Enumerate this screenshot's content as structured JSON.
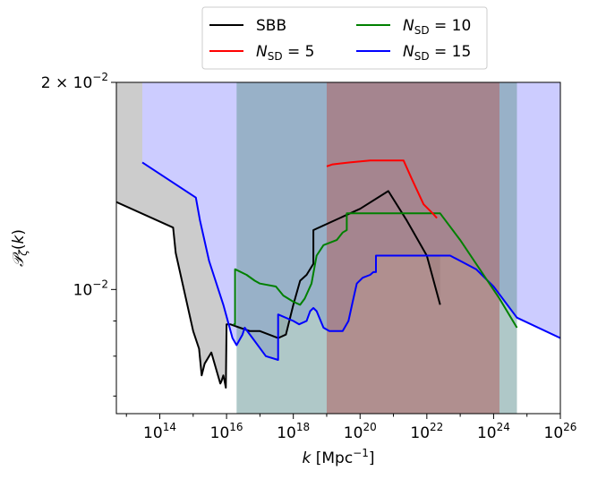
{
  "chart_data": {
    "type": "line",
    "xlabel": "k [Mpc⁻¹]",
    "ylabel": "𝒫ζ(k)",
    "x_scale": "log",
    "y_scale": "log",
    "xlim": [
      5000000000000.0,
      1e+26
    ],
    "ylim": [
      0.0066,
      0.02
    ],
    "x_tick_values": [
      100000000000000.0,
      1e+16,
      1e+18,
      1e+20,
      1e+22,
      1e+24,
      1e+26
    ],
    "x_tick_labels": [
      {
        "base": "10",
        "exp": "14"
      },
      {
        "base": "10",
        "exp": "16"
      },
      {
        "base": "10",
        "exp": "18"
      },
      {
        "base": "10",
        "exp": "20"
      },
      {
        "base": "10",
        "exp": "22"
      },
      {
        "base": "10",
        "exp": "24"
      },
      {
        "base": "10",
        "exp": "26"
      }
    ],
    "y_tick_labels": [
      {
        "value": 0.01,
        "base": "10",
        "exp": "−2"
      },
      {
        "value": 0.02,
        "prefix": "2 × ",
        "base": "10",
        "exp": "−2"
      }
    ],
    "y_minor_ticks": [
      0.007,
      0.008,
      0.009
    ],
    "grid": false,
    "legend_position": "top-center, above plot",
    "series": [
      {
        "name": "SBB",
        "color": "#000000",
        "fill_color": "#cccccc",
        "fill_upper": [
          [
            5000000000000.0,
            0.02
          ],
          [
            2.5e+22,
            0.02
          ],
          [
            2.5e+22,
            0.0095
          ]
        ],
        "line": [
          [
            5000000000000.0,
            0.0134
          ],
          [
            250000000000000.0,
            0.0123
          ],
          [
            300000000000000.0,
            0.0113
          ],
          [
            1000000000000000.0,
            0.0087
          ],
          [
            1500000000000000.0,
            0.0082
          ],
          [
            1800000000000000.0,
            0.0075
          ],
          [
            2200000000000000.0,
            0.0078
          ],
          [
            3500000000000000.0,
            0.0081
          ],
          [
            6500000000000000.0,
            0.0073
          ],
          [
            7000000000000000.0,
            0.00735
          ],
          [
            8000000000000000.0,
            0.0075
          ],
          [
            8500000000000000.0,
            0.0074
          ],
          [
            9500000000000000.0,
            0.0072
          ],
          [
            1e+16,
            0.0089
          ],
          [
            1.3e+16,
            0.0089
          ],
          [
            2.5e+16,
            0.0088
          ],
          [
            5e+16,
            0.0087
          ],
          [
            1e+17,
            0.0087
          ],
          [
            3.5e+17,
            0.0085
          ],
          [
            6e+17,
            0.0086
          ],
          [
            1e+18,
            0.0095
          ],
          [
            1.6e+18,
            0.0103
          ],
          [
            2.5e+18,
            0.0105
          ],
          [
            4e+18,
            0.0109
          ],
          [
            4e+18,
            0.0122
          ],
          [
            1e+20,
            0.0131
          ],
          [
            7e+20,
            0.0139
          ],
          [
            2.5e+21,
            0.0126
          ],
          [
            1e+22,
            0.0112
          ],
          [
            2.5e+22,
            0.0095
          ]
        ]
      },
      {
        "name": "NSD = 5",
        "label_base": "N",
        "label_sub": "SD",
        "label_rest": " = 5",
        "color": "#ff0000",
        "fill_color": "#b06060",
        "fill_x": [
          1e+19,
          1.5e+24
        ],
        "line": [
          [
            1e+19,
            0.0151
          ],
          [
            1.5e+19,
            0.0152
          ],
          [
            5e+19,
            0.0153
          ],
          [
            2e+20,
            0.0154
          ],
          [
            1e+21,
            0.0154
          ],
          [
            2e+21,
            0.0154
          ],
          [
            3.5e+21,
            0.0145
          ],
          [
            8e+21,
            0.0133
          ],
          [
            1.5e+22,
            0.0129
          ],
          [
            2e+22,
            0.0127
          ]
        ]
      },
      {
        "name": "NSD = 10",
        "label_base": "N",
        "label_sub": "SD",
        "label_rest": " = 10",
        "color": "#008000",
        "fill_color": "#6d9a9a",
        "fill_x": [
          2e+16,
          5e+24
        ],
        "line": [
          [
            1.6e+16,
            0.0089
          ],
          [
            1.8e+16,
            0.0089
          ],
          [
            1.8e+16,
            0.0107
          ],
          [
            4e+16,
            0.0105
          ],
          [
            7e+16,
            0.0103
          ],
          [
            1e+17,
            0.0102
          ],
          [
            3e+17,
            0.0101
          ],
          [
            5e+17,
            0.0098
          ],
          [
            1e+18,
            0.0096
          ],
          [
            1.6e+18,
            0.0095
          ],
          [
            2.2e+18,
            0.0097
          ],
          [
            3.5e+18,
            0.0102
          ],
          [
            5e+18,
            0.0112
          ],
          [
            8e+18,
            0.0116
          ],
          [
            2e+19,
            0.0118
          ],
          [
            3e+19,
            0.0121
          ],
          [
            4e+19,
            0.0122
          ],
          [
            4e+19,
            0.0129
          ],
          [
            1e+21,
            0.0129
          ],
          [
            1e+22,
            0.0129
          ],
          [
            2.5e+22,
            0.0129
          ],
          [
            1e+23,
            0.0118
          ],
          [
            5e+23,
            0.0105
          ],
          [
            1.5e+24,
            0.0097
          ],
          [
            5e+24,
            0.0088
          ]
        ]
      },
      {
        "name": "NSD = 15",
        "label_base": "N",
        "label_sub": "SD",
        "label_rest": " = 15",
        "color": "#0000ff",
        "fill_color": "#ccccff",
        "fill_upper": [
          [
            30000000000000.0,
            0.02
          ],
          [
            1e+26,
            0.02
          ],
          [
            1e+26,
            0.0085
          ]
        ],
        "line": [
          [
            30000000000000.0,
            0.0153
          ],
          [
            1200000000000000.0,
            0.0136
          ],
          [
            1600000000000000.0,
            0.0126
          ],
          [
            3000000000000000.0,
            0.011
          ],
          [
            8000000000000000.0,
            0.0095
          ],
          [
            1.5e+16,
            0.0085
          ],
          [
            2e+16,
            0.0083
          ],
          [
            3e+16,
            0.0086
          ],
          [
            3.5e+16,
            0.0088
          ],
          [
            6e+16,
            0.0085
          ],
          [
            1.5e+17,
            0.008
          ],
          [
            3.5e+17,
            0.0079
          ],
          [
            3.5e+17,
            0.0092
          ],
          [
            1e+18,
            0.009
          ],
          [
            1.5e+18,
            0.0089
          ],
          [
            2.5e+18,
            0.009
          ],
          [
            3.2e+18,
            0.0093
          ],
          [
            4e+18,
            0.0094
          ],
          [
            5e+18,
            0.0093
          ],
          [
            8e+18,
            0.0088
          ],
          [
            1.2e+19,
            0.0087
          ],
          [
            3e+19,
            0.0087
          ],
          [
            4.5e+19,
            0.009
          ],
          [
            6e+19,
            0.0096
          ],
          [
            8e+19,
            0.0102
          ],
          [
            1.2e+20,
            0.0104
          ],
          [
            2e+20,
            0.0105
          ],
          [
            2.5e+20,
            0.0106
          ],
          [
            3e+20,
            0.0106
          ],
          [
            3e+20,
            0.0112
          ],
          [
            1e+21,
            0.0112
          ],
          [
            1e+22,
            0.0112
          ],
          [
            5e+22,
            0.0112
          ],
          [
            3e+23,
            0.0107
          ],
          [
            1e+24,
            0.0101
          ],
          [
            5e+24,
            0.0091
          ],
          [
            1e+26,
            0.0085
          ]
        ]
      }
    ]
  }
}
